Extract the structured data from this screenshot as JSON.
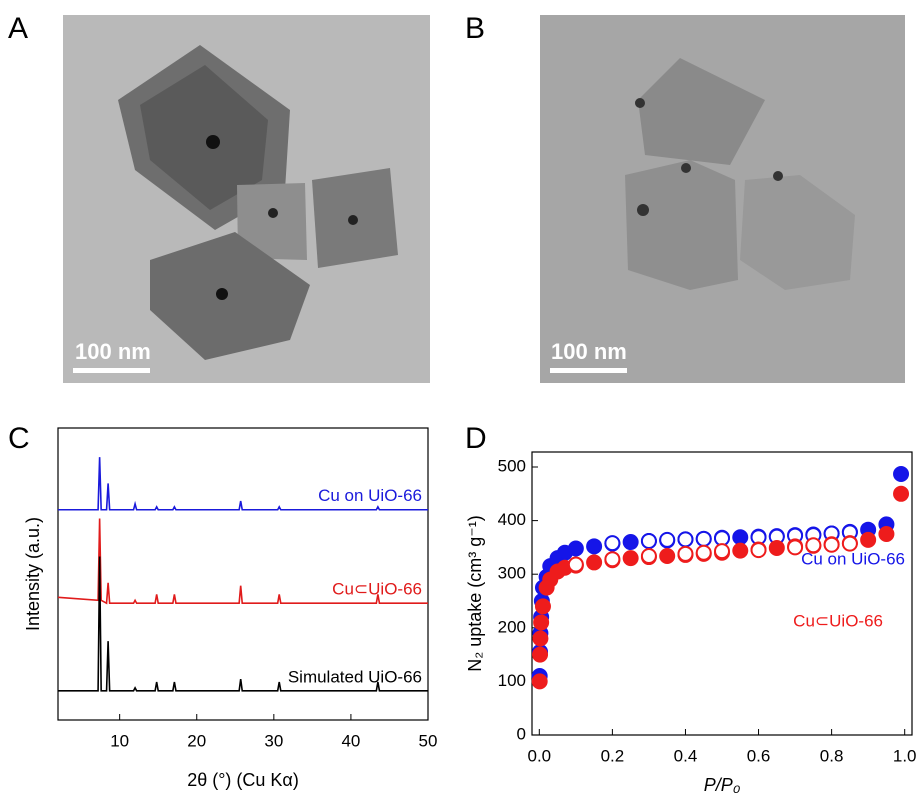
{
  "panels": [
    {
      "label": "A",
      "scale_bar": "100 nm"
    },
    {
      "label": "B",
      "scale_bar": "100 nm"
    },
    {
      "label": "C"
    },
    {
      "label": "D"
    }
  ],
  "chart_data": [
    {
      "type": "line",
      "xlabel": "2θ (°) (Cu Kα)",
      "ylabel": "Intensity (a.u.)",
      "xlim": [
        2,
        50
      ],
      "xticks": [
        10,
        20,
        30,
        40,
        50
      ],
      "ylim": [
        0,
        100
      ],
      "x": [
        2,
        7.2,
        7.4,
        7.6,
        8.3,
        8.5,
        8.7,
        11.8,
        12,
        12.2,
        14.6,
        14.8,
        15,
        16.9,
        17.1,
        17.3,
        25.5,
        25.7,
        25.9,
        30.5,
        30.7,
        30.9,
        43.3,
        43.5,
        43.7,
        50
      ],
      "series": [
        {
          "name": "Cu on UiO-66",
          "color": "#1a1adb",
          "values": [
            72,
            72,
            90,
            72,
            72,
            81,
            72,
            72,
            74,
            72,
            72,
            73,
            72,
            72,
            73,
            72,
            72,
            75,
            72,
            72,
            73,
            72,
            72,
            73,
            72,
            72
          ]
        },
        {
          "name": "Cu⊂UiO-66",
          "color": "#e01b1b",
          "values": [
            42,
            41,
            69,
            41,
            40,
            47,
            40,
            40,
            41,
            40,
            40,
            43,
            40,
            40,
            43,
            40,
            40,
            46,
            40,
            40,
            43,
            40,
            40,
            43,
            40,
            40
          ]
        },
        {
          "name": "Simulated UiO-66",
          "color": "#000000",
          "values": [
            10,
            10,
            56,
            10,
            10,
            27,
            10,
            10,
            11,
            10,
            10,
            13,
            10,
            10,
            13,
            10,
            10,
            14,
            10,
            10,
            13,
            10,
            10,
            13,
            10,
            10
          ]
        }
      ]
    },
    {
      "type": "scatter",
      "xlabel": "P/P₀",
      "ylabel": "N₂ uptake (cm³ g⁻¹)",
      "xlim": [
        -0.02,
        1.02
      ],
      "xticks": [
        {
          "value": 0,
          "label": "0.0"
        },
        0.2,
        0.4,
        0.6,
        0.8,
        {
          "value": 1,
          "label": "1.0"
        }
      ],
      "ylim": [
        0,
        528
      ],
      "yticks": [
        0,
        100,
        200,
        300,
        400,
        500
      ],
      "series": [
        {
          "name": "Cu on UiO-66",
          "color": "#1515e8",
          "adsorption": {
            "x": [
              0.001,
              0.002,
              0.003,
              0.005,
              0.007,
              0.01,
              0.02,
              0.03,
              0.05,
              0.07,
              0.1,
              0.15,
              0.2,
              0.25,
              0.3,
              0.35,
              0.4,
              0.45,
              0.5,
              0.55,
              0.6,
              0.65,
              0.7,
              0.75,
              0.8,
              0.85,
              0.9,
              0.95,
              0.99
            ],
            "values": [
              110,
              155,
              190,
              220,
              250,
              275,
              295,
              315,
              330,
              340,
              348,
              352,
              357,
              360,
              362,
              363,
              365,
              366,
              368,
              369,
              370,
              371,
              373,
              374,
              376,
              379,
              383,
              393,
              487
            ]
          },
          "desorption": {
            "x": [
              0.85,
              0.8,
              0.75,
              0.7,
              0.65,
              0.6,
              0.5,
              0.45,
              0.4,
              0.35,
              0.3,
              0.2
            ],
            "values": [
              378,
              376,
              373,
              372,
              370,
              369,
              367,
              366,
              365,
              364,
              362,
              358
            ]
          }
        },
        {
          "name": "Cu⊂UiO-66",
          "color": "#ee1c1c",
          "adsorption": {
            "x": [
              0.001,
              0.002,
              0.003,
              0.005,
              0.01,
              0.02,
              0.03,
              0.05,
              0.07,
              0.1,
              0.15,
              0.2,
              0.25,
              0.3,
              0.35,
              0.4,
              0.45,
              0.5,
              0.55,
              0.6,
              0.65,
              0.7,
              0.75,
              0.8,
              0.85,
              0.9,
              0.95,
              0.99
            ],
            "values": [
              100,
              150,
              180,
              210,
              240,
              275,
              290,
              305,
              312,
              316,
              322,
              326,
              330,
              332,
              334,
              336,
              338,
              340,
              344,
              346,
              349,
              352,
              353,
              356,
              358,
              364,
              375,
              450
            ]
          },
          "desorption": {
            "x": [
              0.85,
              0.8,
              0.75,
              0.7,
              0.6,
              0.5,
              0.45,
              0.4,
              0.3,
              0.2,
              0.1
            ],
            "values": [
              357,
              355,
              354,
              350,
              345,
              343,
              340,
              338,
              334,
              328,
              318
            ]
          }
        }
      ]
    }
  ]
}
